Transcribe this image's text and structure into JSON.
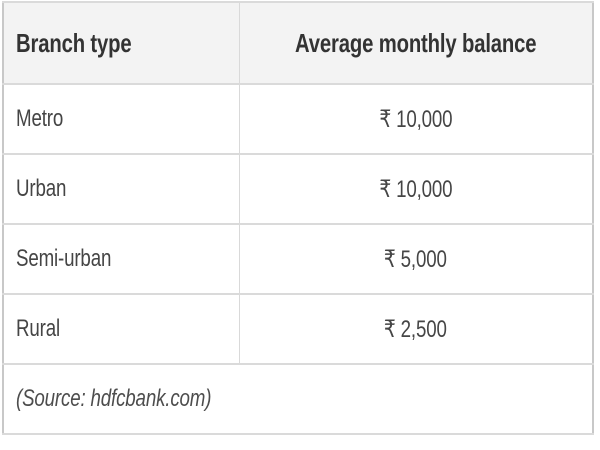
{
  "table": {
    "columns": {
      "branch_type_header": "Branch type",
      "balance_header": "Average monthly balance"
    },
    "rows": [
      {
        "branch_type": "Metro",
        "balance": "₹ 10,000"
      },
      {
        "branch_type": "Urban",
        "balance": "₹ 10,000"
      },
      {
        "branch_type": "Semi-urban",
        "balance": "₹ 5,000"
      },
      {
        "branch_type": "Rural",
        "balance": "₹ 2,500"
      }
    ],
    "source_note": "(Source: hdfcbank.com)"
  },
  "colors": {
    "header_background": "#f3f3f3",
    "outer_border": "#c8c8c8",
    "row_border": "#dadada",
    "header_text": "#333333",
    "cell_text": "#454545",
    "source_text": "#4d4d4d"
  }
}
